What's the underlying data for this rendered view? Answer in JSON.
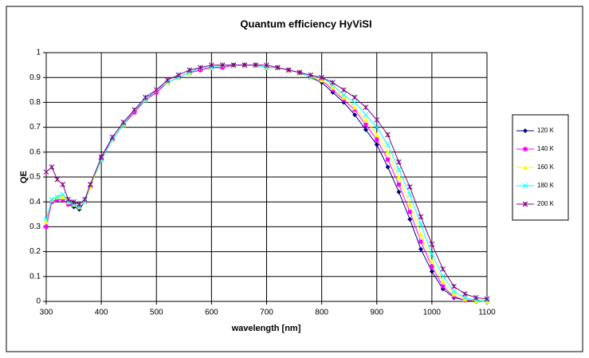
{
  "chart_data": {
    "type": "line",
    "title": "Quantum efficiency HyViSI",
    "x_label": "wavelength [nm]",
    "y_label": "QE",
    "x": [
      300,
      310,
      320,
      330,
      340,
      350,
      360,
      370,
      380,
      400,
      420,
      440,
      460,
      480,
      500,
      520,
      540,
      560,
      580,
      600,
      620,
      640,
      660,
      680,
      700,
      720,
      740,
      760,
      780,
      800,
      820,
      840,
      860,
      880,
      900,
      920,
      940,
      960,
      980,
      1000,
      1020,
      1040,
      1060,
      1080,
      1100
    ],
    "xlim": [
      300,
      1100
    ],
    "xticks": [
      300,
      400,
      500,
      600,
      700,
      800,
      900,
      1000,
      1100
    ],
    "ylim": [
      0,
      1
    ],
    "yticks": [
      0,
      0.1,
      0.2,
      0.3,
      0.4,
      0.5,
      0.6,
      0.7,
      0.8,
      0.9,
      1
    ],
    "grid": true,
    "legend": "right",
    "series": [
      {
        "name": "120 K",
        "color": "#000080",
        "marker": "diamond",
        "values": [
          0.3,
          0.4,
          0.41,
          0.41,
          0.39,
          0.38,
          0.37,
          0.4,
          0.46,
          0.57,
          0.65,
          0.71,
          0.76,
          0.81,
          0.84,
          0.88,
          0.9,
          0.92,
          0.93,
          0.94,
          0.94,
          0.95,
          0.95,
          0.95,
          0.94,
          0.94,
          0.93,
          0.92,
          0.9,
          0.88,
          0.84,
          0.8,
          0.75,
          0.69,
          0.63,
          0.54,
          0.44,
          0.33,
          0.21,
          0.12,
          0.05,
          0.015,
          0.005,
          0,
          0
        ]
      },
      {
        "name": "140 K",
        "color": "#ff00ff",
        "marker": "square",
        "values": [
          0.3,
          0.4,
          0.41,
          0.41,
          0.39,
          0.39,
          0.38,
          0.4,
          0.46,
          0.58,
          0.65,
          0.71,
          0.76,
          0.81,
          0.84,
          0.88,
          0.9,
          0.92,
          0.93,
          0.94,
          0.94,
          0.95,
          0.95,
          0.95,
          0.94,
          0.94,
          0.93,
          0.92,
          0.9,
          0.89,
          0.85,
          0.81,
          0.77,
          0.71,
          0.65,
          0.57,
          0.47,
          0.36,
          0.24,
          0.14,
          0.06,
          0.02,
          0.005,
          0.002,
          0
        ]
      },
      {
        "name": "160 K",
        "color": "#ffff00",
        "marker": "triangle",
        "values": [
          0.32,
          0.41,
          0.42,
          0.42,
          0.4,
          0.39,
          0.38,
          0.4,
          0.46,
          0.57,
          0.65,
          0.71,
          0.77,
          0.81,
          0.85,
          0.88,
          0.9,
          0.92,
          0.94,
          0.94,
          0.95,
          0.95,
          0.95,
          0.95,
          0.94,
          0.94,
          0.93,
          0.92,
          0.9,
          0.89,
          0.86,
          0.82,
          0.78,
          0.73,
          0.67,
          0.6,
          0.5,
          0.39,
          0.27,
          0.16,
          0.08,
          0.03,
          0.01,
          0.003,
          0
        ]
      },
      {
        "name": "180 K",
        "color": "#00ffff",
        "marker": "x",
        "values": [
          0.33,
          0.41,
          0.42,
          0.43,
          0.4,
          0.39,
          0.38,
          0.4,
          0.47,
          0.57,
          0.65,
          0.71,
          0.77,
          0.81,
          0.85,
          0.88,
          0.9,
          0.92,
          0.94,
          0.94,
          0.95,
          0.95,
          0.95,
          0.95,
          0.94,
          0.94,
          0.93,
          0.92,
          0.9,
          0.9,
          0.87,
          0.83,
          0.8,
          0.75,
          0.7,
          0.63,
          0.53,
          0.43,
          0.31,
          0.19,
          0.1,
          0.04,
          0.015,
          0.005,
          0.005
        ]
      },
      {
        "name": "200 K",
        "color": "#800080",
        "marker": "star",
        "values": [
          0.52,
          0.54,
          0.49,
          0.47,
          0.41,
          0.4,
          0.39,
          0.41,
          0.47,
          0.58,
          0.66,
          0.72,
          0.77,
          0.82,
          0.85,
          0.89,
          0.91,
          0.93,
          0.94,
          0.95,
          0.95,
          0.95,
          0.95,
          0.95,
          0.95,
          0.94,
          0.93,
          0.92,
          0.91,
          0.9,
          0.88,
          0.85,
          0.82,
          0.78,
          0.73,
          0.67,
          0.56,
          0.46,
          0.34,
          0.23,
          0.13,
          0.06,
          0.03,
          0.015,
          0.01
        ]
      }
    ]
  }
}
